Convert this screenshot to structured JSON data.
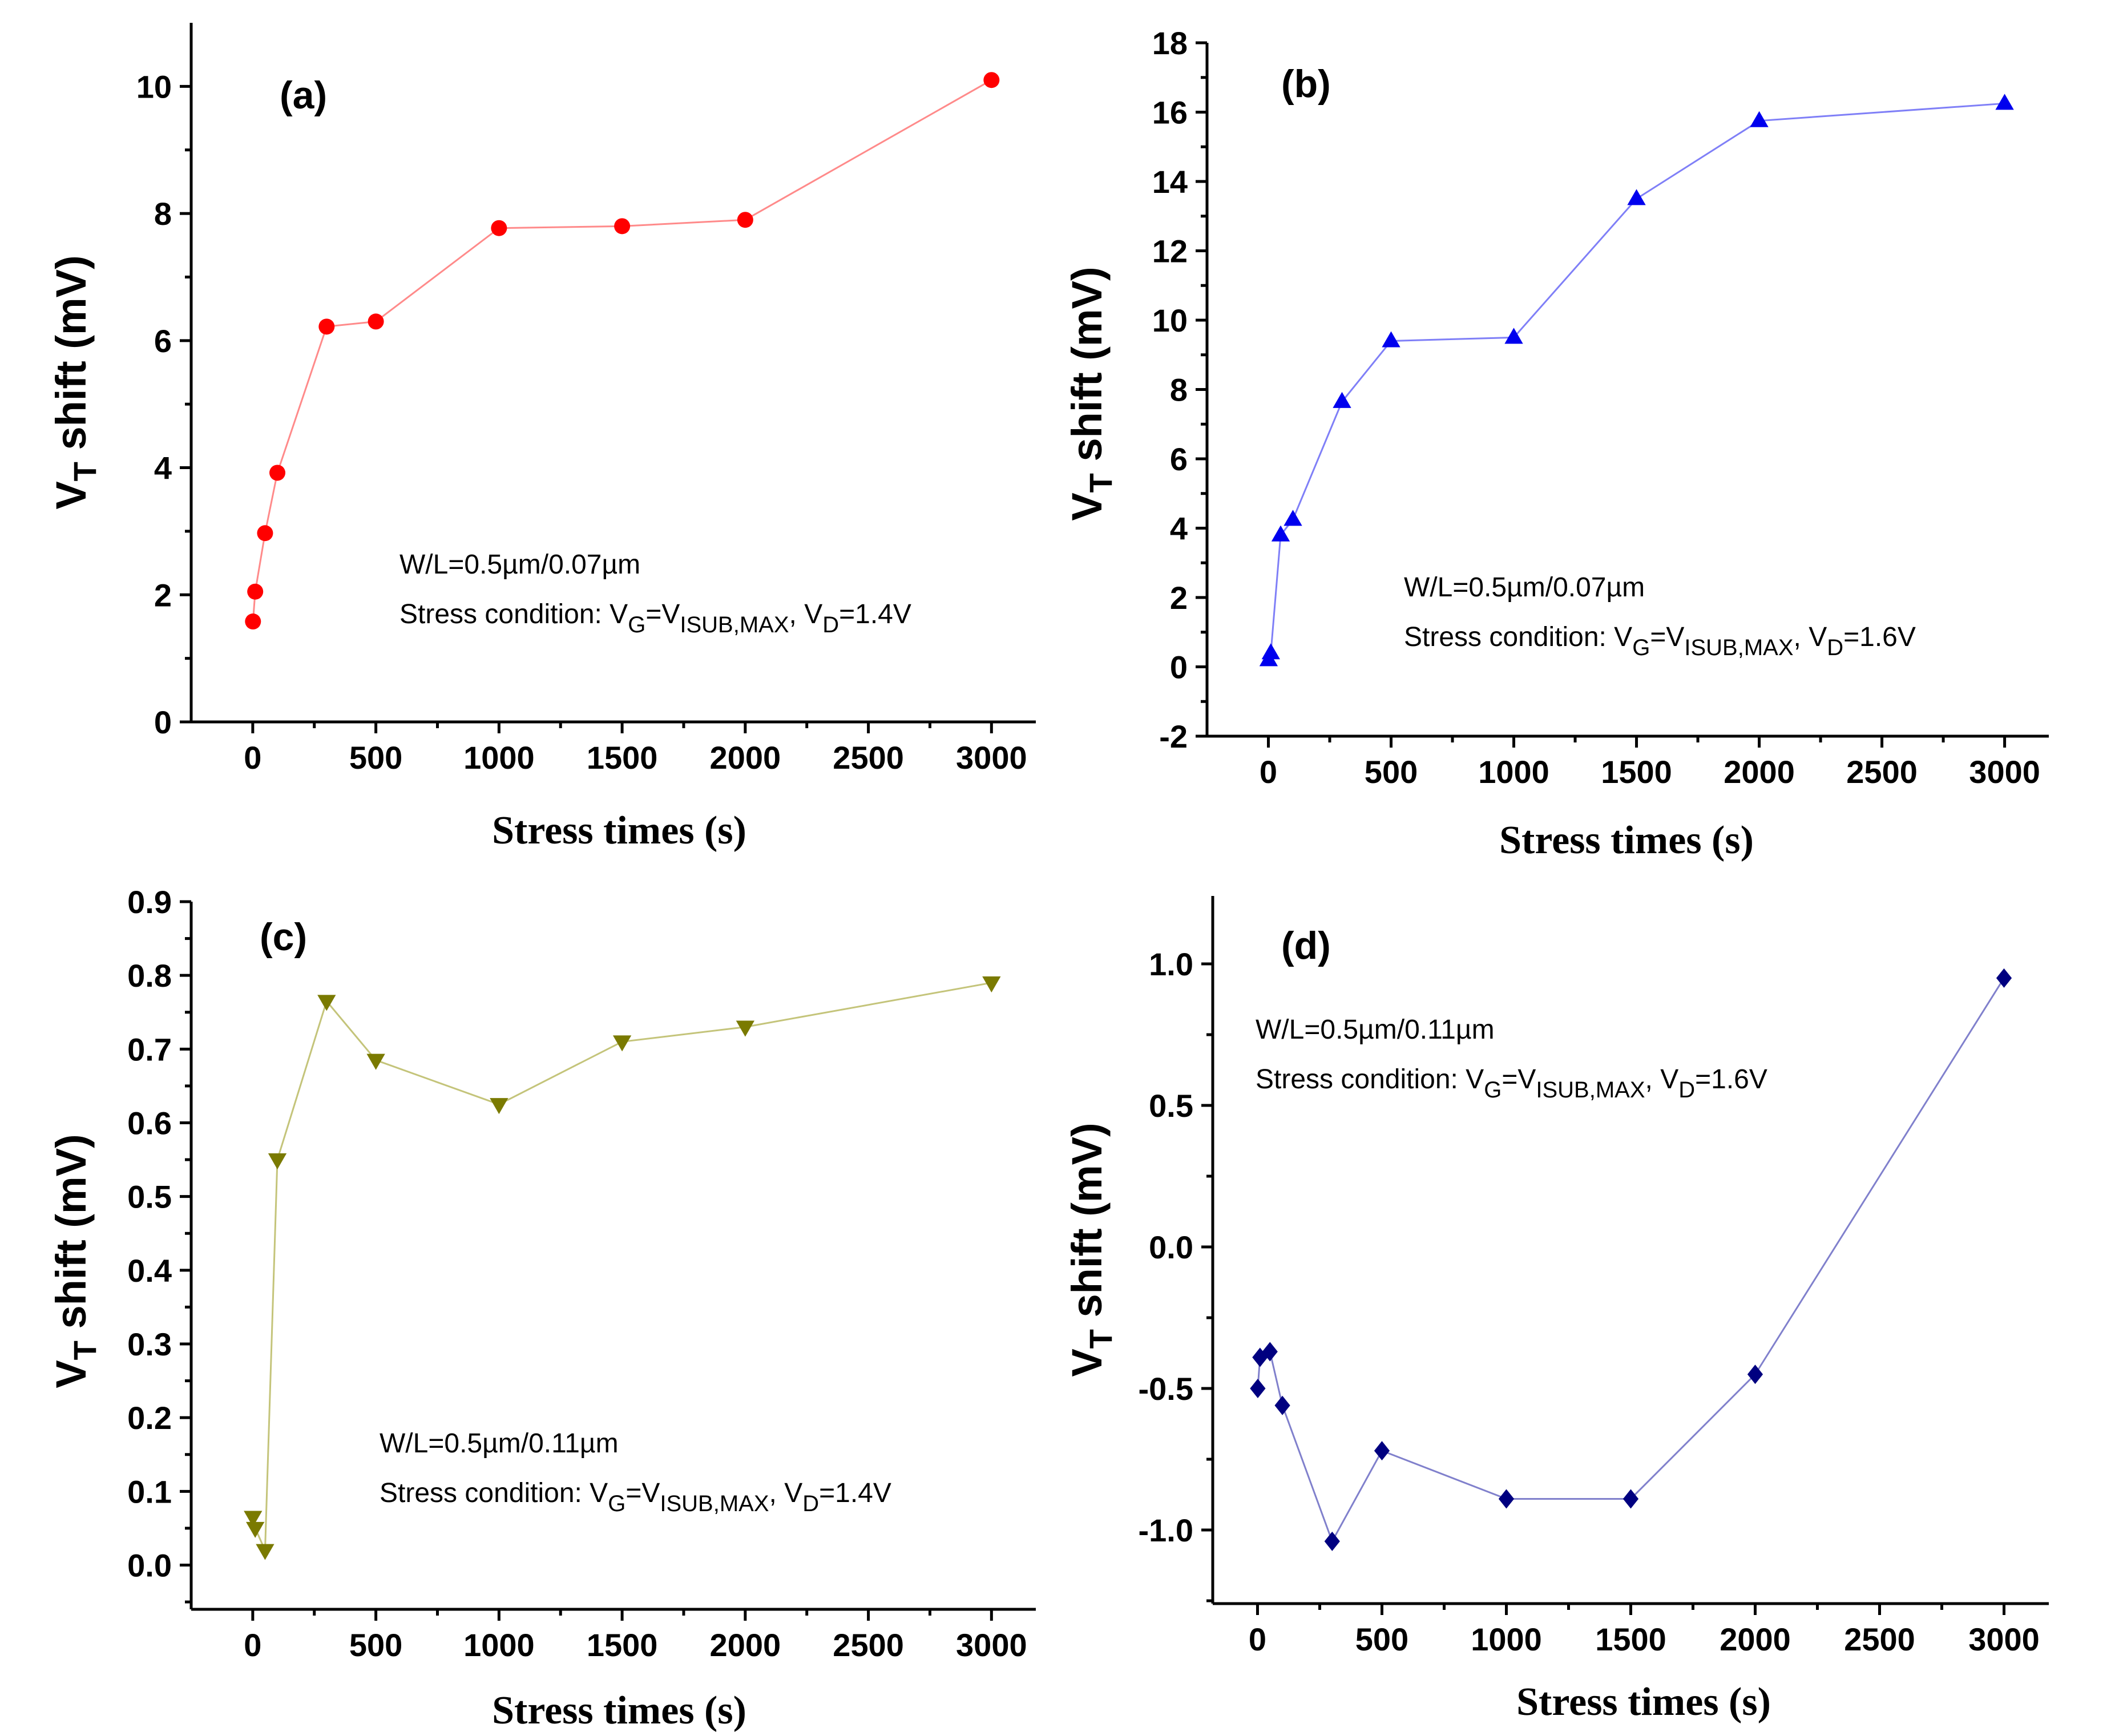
{
  "chart_data": [
    {
      "id": "a",
      "type": "line",
      "panel_label": "(a)",
      "xlabel": "Stress times (s)",
      "ylabel_main": "V",
      "ylabel_sub": "T",
      "ylabel_rest": " shift (mV)",
      "xlim": [
        -250,
        3180
      ],
      "ylim": [
        0,
        11.0
      ],
      "xticks": [
        0,
        500,
        1000,
        1500,
        2000,
        2500,
        3000
      ],
      "yticks": [
        0,
        2,
        4,
        6,
        8,
        10
      ],
      "ytick_labels": [
        "0",
        "2",
        "4",
        "6",
        "8",
        "10"
      ],
      "marker": "circle",
      "color": "#ff0000",
      "line_color": "#ff8a8a",
      "series": [
        {
          "name": "VT shift",
          "x": [
            1,
            10,
            50,
            100,
            300,
            500,
            1000,
            1500,
            2000,
            3000
          ],
          "y": [
            1.58,
            2.05,
            2.97,
            3.92,
            6.22,
            6.3,
            7.77,
            7.8,
            7.9,
            10.1
          ]
        }
      ],
      "annotation": {
        "line1": "W/L=0.5µm/0.07µm",
        "prefix": "Stress condition: ",
        "v1": "V",
        "s1": "G",
        "eq": "=V",
        "s2": "ISUB,MAX",
        "comma": ", V",
        "s3": "D",
        "tail": "=1.4V"
      }
    },
    {
      "id": "b",
      "type": "line",
      "panel_label": "(b)",
      "xlabel": "Stress times (s)",
      "ylabel_main": "V",
      "ylabel_sub": "T",
      "ylabel_rest": " shift (mV)",
      "xlim": [
        -250,
        3180
      ],
      "ylim": [
        -2,
        18
      ],
      "xticks": [
        0,
        500,
        1000,
        1500,
        2000,
        2500,
        3000
      ],
      "yticks": [
        -2,
        0,
        2,
        4,
        6,
        8,
        10,
        12,
        14,
        16,
        18
      ],
      "ytick_labels": [
        "-2",
        "0",
        "2",
        "4",
        "6",
        "8",
        "10",
        "12",
        "14",
        "16",
        "18"
      ],
      "marker": "triangle-up",
      "color": "#0000ee",
      "line_color": "#7f7ff7",
      "series": [
        {
          "name": "VT shift",
          "x": [
            1,
            10,
            50,
            100,
            300,
            500,
            1000,
            1500,
            2000,
            3000
          ],
          "y": [
            0.2,
            0.4,
            3.8,
            4.25,
            7.65,
            9.4,
            9.5,
            13.5,
            15.75,
            16.25
          ]
        }
      ],
      "annotation": {
        "line1": "W/L=0.5µm/0.07µm",
        "prefix": "Stress condition: ",
        "v1": "V",
        "s1": "G",
        "eq": "=V",
        "s2": "ISUB,MAX",
        "comma": ", V",
        "s3": "D",
        "tail": "=1.6V"
      }
    },
    {
      "id": "c",
      "type": "line",
      "panel_label": "(c)",
      "xlabel": "Stress times (s)",
      "ylabel_main": "V",
      "ylabel_sub": "T",
      "ylabel_rest": " shift (mV)",
      "xlim": [
        -250,
        3180
      ],
      "ylim": [
        -0.06,
        0.9
      ],
      "xticks": [
        0,
        500,
        1000,
        1500,
        2000,
        2500,
        3000
      ],
      "yticks": [
        0.0,
        0.1,
        0.2,
        0.3,
        0.4,
        0.5,
        0.6,
        0.7,
        0.8,
        0.9
      ],
      "ytick_labels": [
        "0.0",
        "0.1",
        "0.2",
        "0.3",
        "0.4",
        "0.5",
        "0.6",
        "0.7",
        "0.8",
        "0.9"
      ],
      "marker": "triangle-down",
      "color": "#7a7a00",
      "line_color": "#c4c47a",
      "series": [
        {
          "name": "VT shift",
          "x": [
            1,
            10,
            50,
            100,
            300,
            500,
            1000,
            1500,
            2000,
            3000
          ],
          "y": [
            0.065,
            0.05,
            0.02,
            0.55,
            0.765,
            0.685,
            0.625,
            0.71,
            0.73,
            0.79
          ]
        }
      ],
      "annotation": {
        "line1": "W/L=0.5µm/0.11µm",
        "prefix": "Stress condition: ",
        "v1": "V",
        "s1": "G",
        "eq": "=V",
        "s2": "ISUB,MAX",
        "comma": ", V",
        "s3": "D",
        "tail": "=1.4V"
      }
    },
    {
      "id": "d",
      "type": "line",
      "panel_label": "(d)",
      "xlabel": "Stress times (s)",
      "ylabel_main": "V",
      "ylabel_sub": "T",
      "ylabel_rest": " shift (mV)",
      "xlim": [
        -180,
        3180
      ],
      "ylim": [
        -1.26,
        1.24
      ],
      "xticks": [
        0,
        500,
        1000,
        1500,
        2000,
        2500,
        3000
      ],
      "yticks": [
        -1.0,
        -0.5,
        0.0,
        0.5,
        1.0
      ],
      "ytick_labels": [
        "-1.0",
        "-0.5",
        "0.0",
        "0.5",
        "1.0"
      ],
      "marker": "diamond",
      "color": "#000080",
      "line_color": "#8080cc",
      "series": [
        {
          "name": "VT shift",
          "x": [
            1,
            10,
            50,
            100,
            300,
            500,
            1000,
            1500,
            2000,
            3000
          ],
          "y": [
            -0.5,
            -0.39,
            -0.37,
            -0.56,
            -1.04,
            -0.72,
            -0.89,
            -0.89,
            -0.45,
            0.95
          ]
        }
      ],
      "annotation": {
        "line1": "W/L=0.5µm/0.11µm",
        "prefix": "Stress condition: ",
        "v1": "V",
        "s1": "G",
        "eq": "=V",
        "s2": "ISUB,MAX",
        "comma": ", V",
        "s3": "D",
        "tail": "=1.6V"
      }
    }
  ]
}
